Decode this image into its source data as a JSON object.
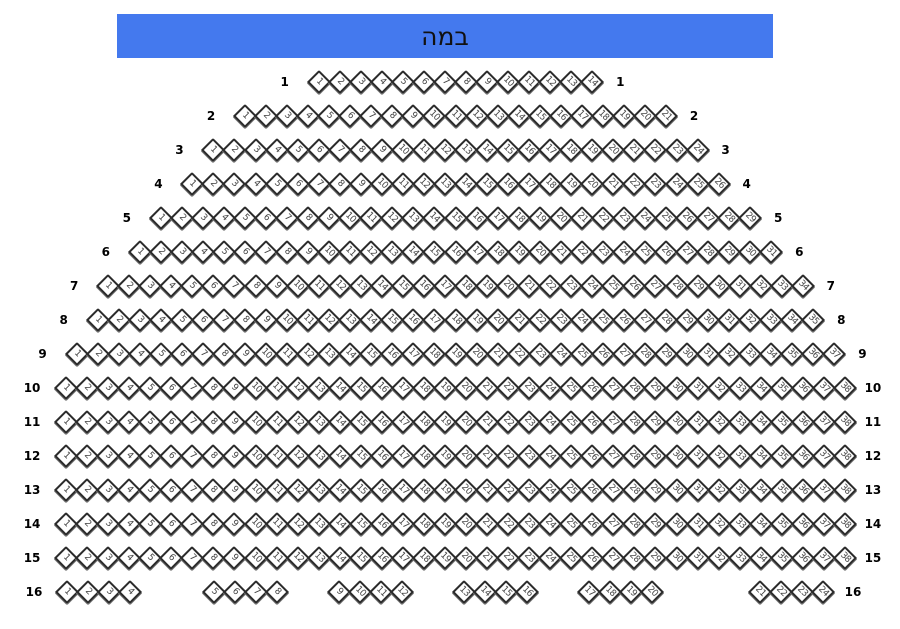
{
  "stage": {
    "label": "במה",
    "color": "#4479ee"
  },
  "rows": [
    {
      "label": "1",
      "seats": [
        1,
        2,
        3,
        4,
        5,
        6,
        7,
        8,
        9,
        10,
        11,
        12,
        13,
        14
      ]
    },
    {
      "label": "2",
      "seats": [
        1,
        2,
        3,
        4,
        5,
        6,
        7,
        8,
        9,
        10,
        11,
        12,
        13,
        14,
        15,
        16,
        17,
        18,
        19,
        20,
        21
      ]
    },
    {
      "label": "3",
      "seats": [
        1,
        2,
        3,
        4,
        5,
        6,
        7,
        8,
        9,
        10,
        11,
        12,
        13,
        14,
        15,
        16,
        17,
        18,
        19,
        20,
        21,
        22,
        23,
        24
      ]
    },
    {
      "label": "4",
      "seats": [
        1,
        2,
        3,
        4,
        5,
        6,
        7,
        8,
        9,
        10,
        11,
        12,
        13,
        14,
        15,
        16,
        17,
        18,
        19,
        20,
        21,
        22,
        23,
        24,
        25,
        26
      ]
    },
    {
      "label": "5",
      "seats": [
        1,
        2,
        3,
        4,
        5,
        6,
        7,
        8,
        9,
        10,
        11,
        12,
        13,
        14,
        15,
        16,
        17,
        18,
        19,
        20,
        21,
        22,
        23,
        24,
        25,
        26,
        27,
        28,
        29
      ]
    },
    {
      "label": "6",
      "seats": [
        1,
        2,
        3,
        4,
        5,
        6,
        7,
        8,
        9,
        10,
        11,
        12,
        13,
        14,
        15,
        16,
        17,
        18,
        19,
        20,
        21,
        22,
        23,
        24,
        25,
        26,
        27,
        28,
        29,
        30,
        31
      ]
    },
    {
      "label": "7",
      "seats": [
        1,
        2,
        3,
        4,
        5,
        6,
        7,
        8,
        9,
        10,
        11,
        12,
        13,
        14,
        15,
        16,
        17,
        18,
        19,
        20,
        21,
        22,
        23,
        24,
        25,
        26,
        27,
        28,
        29,
        30,
        31,
        32,
        33,
        34
      ]
    },
    {
      "label": "8",
      "seats": [
        1,
        2,
        3,
        4,
        5,
        6,
        7,
        8,
        9,
        10,
        11,
        12,
        13,
        14,
        15,
        16,
        17,
        18,
        19,
        20,
        21,
        22,
        23,
        24,
        25,
        26,
        27,
        28,
        29,
        30,
        31,
        32,
        33,
        34,
        35
      ]
    },
    {
      "label": "9",
      "seats": [
        1,
        2,
        3,
        4,
        5,
        6,
        7,
        8,
        9,
        10,
        11,
        12,
        13,
        14,
        15,
        16,
        17,
        18,
        19,
        20,
        21,
        22,
        23,
        24,
        25,
        26,
        27,
        28,
        29,
        30,
        31,
        32,
        33,
        34,
        35,
        36,
        37
      ]
    },
    {
      "label": "10",
      "seats": [
        1,
        2,
        3,
        4,
        5,
        6,
        7,
        8,
        9,
        10,
        11,
        12,
        13,
        14,
        15,
        16,
        17,
        18,
        19,
        20,
        21,
        22,
        23,
        24,
        25,
        26,
        27,
        28,
        29,
        30,
        31,
        32,
        33,
        34,
        35,
        36,
        37,
        38
      ]
    },
    {
      "label": "11",
      "seats": [
        1,
        2,
        3,
        4,
        5,
        6,
        7,
        8,
        9,
        10,
        11,
        12,
        13,
        14,
        15,
        16,
        17,
        18,
        19,
        20,
        21,
        22,
        23,
        24,
        25,
        26,
        27,
        28,
        29,
        30,
        31,
        32,
        33,
        34,
        35,
        36,
        37,
        38
      ]
    },
    {
      "label": "12",
      "seats": [
        1,
        2,
        3,
        4,
        5,
        6,
        7,
        8,
        9,
        10,
        11,
        12,
        13,
        14,
        15,
        16,
        17,
        18,
        19,
        20,
        21,
        22,
        23,
        24,
        25,
        26,
        27,
        28,
        29,
        30,
        31,
        32,
        33,
        34,
        35,
        36,
        37,
        38
      ]
    },
    {
      "label": "13",
      "seats": [
        1,
        2,
        3,
        4,
        5,
        6,
        7,
        8,
        9,
        10,
        11,
        12,
        13,
        14,
        15,
        16,
        17,
        18,
        19,
        20,
        21,
        22,
        23,
        24,
        25,
        26,
        27,
        28,
        29,
        30,
        31,
        32,
        33,
        34,
        35,
        36,
        37,
        38
      ]
    },
    {
      "label": "14",
      "seats": [
        1,
        2,
        3,
        4,
        5,
        6,
        7,
        8,
        9,
        10,
        11,
        12,
        13,
        14,
        15,
        16,
        17,
        18,
        19,
        20,
        21,
        22,
        23,
        24,
        25,
        26,
        27,
        28,
        29,
        30,
        31,
        32,
        33,
        34,
        35,
        36,
        37,
        38
      ]
    },
    {
      "label": "15",
      "seats": [
        1,
        2,
        3,
        4,
        5,
        6,
        7,
        8,
        9,
        10,
        11,
        12,
        13,
        14,
        15,
        16,
        17,
        18,
        19,
        20,
        21,
        22,
        23,
        24,
        25,
        26,
        27,
        28,
        29,
        30,
        31,
        32,
        33,
        34,
        35,
        36,
        37,
        38
      ]
    },
    {
      "label": "16",
      "groups": [
        [
          1,
          2,
          3,
          4
        ],
        [
          5,
          6,
          7,
          8
        ],
        [
          9,
          10,
          11,
          12
        ],
        [
          13,
          14,
          15,
          16
        ],
        [
          17,
          18,
          19,
          20
        ],
        [
          21,
          22,
          23,
          24
        ]
      ]
    }
  ]
}
